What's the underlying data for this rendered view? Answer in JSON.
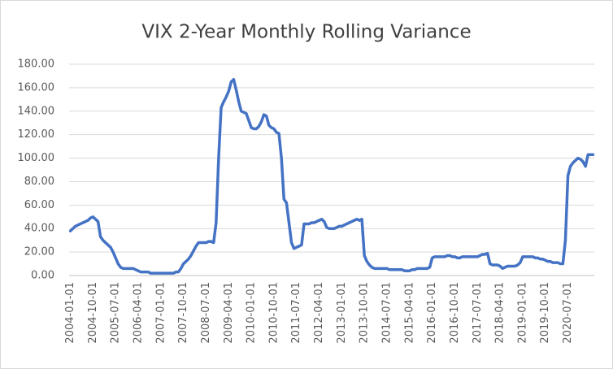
{
  "chart_data": {
    "type": "line",
    "title": "VIX 2-Year Monthly Rolling Variance",
    "categories": [
      "2004-01-01",
      null,
      null,
      null,
      null,
      null,
      null,
      null,
      null,
      "2004-10-01",
      null,
      null,
      null,
      null,
      null,
      null,
      null,
      null,
      "2005-07-01",
      null,
      null,
      null,
      null,
      null,
      null,
      null,
      null,
      "2006-04-01",
      null,
      null,
      null,
      null,
      null,
      null,
      null,
      null,
      "2007-01-01",
      null,
      null,
      null,
      null,
      null,
      null,
      null,
      null,
      "2007-10-01",
      null,
      null,
      null,
      null,
      null,
      null,
      null,
      null,
      "2008-07-01",
      null,
      null,
      null,
      null,
      null,
      null,
      null,
      null,
      "2009-04-01",
      null,
      null,
      null,
      null,
      null,
      null,
      null,
      null,
      "2010-01-01",
      null,
      null,
      null,
      null,
      null,
      null,
      null,
      null,
      "2010-10-01",
      null,
      null,
      null,
      null,
      null,
      null,
      null,
      null,
      "2011-07-01",
      null,
      null,
      null,
      null,
      null,
      null,
      null,
      null,
      "2012-04-01",
      null,
      null,
      null,
      null,
      null,
      null,
      null,
      null,
      "2013-01-01",
      null,
      null,
      null,
      null,
      null,
      null,
      null,
      null,
      "2013-10-01",
      null,
      null,
      null,
      null,
      null,
      null,
      null,
      null,
      "2014-07-01",
      null,
      null,
      null,
      null,
      null,
      null,
      null,
      null,
      "2015-04-01",
      null,
      null,
      null,
      null,
      null,
      null,
      null,
      null,
      "2016-01-01",
      null,
      null,
      null,
      null,
      null,
      null,
      null,
      null,
      "2016-10-01",
      null,
      null,
      null,
      null,
      null,
      null,
      null,
      null,
      "2017-07-01",
      null,
      null,
      null,
      null,
      null,
      null,
      null,
      null,
      "2018-04-01",
      null,
      null,
      null,
      null,
      null,
      null,
      null,
      null,
      "2019-01-01",
      null,
      null,
      null,
      null,
      null,
      null,
      null,
      null,
      "2019-10-01",
      null,
      null,
      null,
      null,
      null,
      null,
      null,
      null,
      "2020-07-01",
      null,
      null,
      null,
      null,
      null,
      null,
      null,
      null,
      null,
      null
    ],
    "values": [
      38,
      40,
      42,
      43,
      44,
      45,
      46,
      47,
      49,
      50,
      48,
      46,
      33,
      30,
      28,
      26,
      24,
      20,
      15,
      10,
      7,
      6,
      6,
      6,
      6,
      6,
      5,
      4,
      3,
      3,
      3,
      3,
      2,
      2,
      2,
      2,
      2,
      2,
      2,
      2,
      2,
      2,
      3,
      3,
      6,
      10,
      12,
      14,
      17,
      21,
      25,
      28,
      28,
      28,
      28,
      29,
      29,
      28,
      45,
      100,
      143,
      148,
      152,
      157,
      165,
      167,
      158,
      148,
      140,
      139,
      138,
      132,
      126,
      125,
      125,
      127,
      131,
      137,
      136,
      128,
      126,
      125,
      122,
      121,
      100,
      65,
      62,
      45,
      28,
      23,
      24,
      25,
      26,
      44,
      44,
      44,
      45,
      45,
      46,
      47,
      48,
      46,
      41,
      40,
      40,
      40,
      41,
      42,
      42,
      43,
      44,
      45,
      46,
      47,
      48,
      47,
      48,
      17,
      12,
      9,
      7,
      6,
      6,
      6,
      6,
      6,
      6,
      5,
      5,
      5,
      5,
      5,
      5,
      4,
      4,
      4,
      5,
      5,
      6,
      6,
      6,
      6,
      6,
      7,
      15,
      16,
      16,
      16,
      16,
      16,
      17,
      17,
      16,
      16,
      15,
      15,
      16,
      16,
      16,
      16,
      16,
      16,
      16,
      17,
      18,
      18,
      19,
      10,
      9,
      9,
      9,
      8,
      6,
      7,
      8,
      8,
      8,
      8,
      9,
      11,
      16,
      16,
      16,
      16,
      16,
      15,
      15,
      14,
      14,
      13,
      12,
      12,
      11,
      11,
      11,
      10,
      10,
      30,
      85,
      93,
      96,
      98,
      100,
      99,
      97,
      93,
      103,
      103,
      103
    ],
    "color": "#4472c4",
    "ylim": [
      0,
      180
    ],
    "yticks": [
      {
        "value": 0,
        "label": "0.00"
      },
      {
        "value": 20,
        "label": "20.00"
      },
      {
        "value": 40,
        "label": "40.00"
      },
      {
        "value": 60,
        "label": "60.00"
      },
      {
        "value": 80,
        "label": "80.00"
      },
      {
        "value": 100,
        "label": "100.00"
      },
      {
        "value": 120,
        "label": "120.00"
      },
      {
        "value": 140,
        "label": "140.00"
      },
      {
        "value": 160,
        "label": "160.00"
      },
      {
        "value": 180,
        "label": "180.00"
      }
    ],
    "grid": true
  }
}
